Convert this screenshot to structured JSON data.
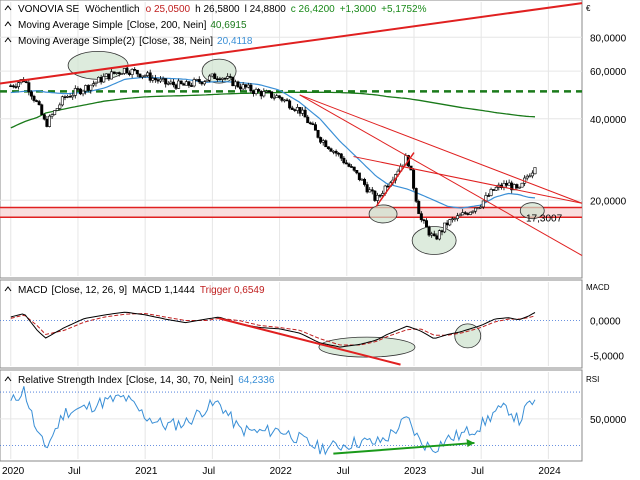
{
  "chart_data": [
    {
      "type": "candlestick",
      "title": "VONOVIA SE",
      "interval": "Wöchentlich",
      "quote": {
        "open": "o 25,0500",
        "high": "h 26,5800",
        "low": "l 24,8800",
        "close": "c 26,4200",
        "change": "+1,3000",
        "change_pct": "+5,1752%"
      },
      "currency": "€",
      "indicators": [
        {
          "name": "Moving Average Simple",
          "params": "[Close, 200, Nein]",
          "value": "40,6915",
          "color": "#1a7a1a"
        },
        {
          "name": "Moving Average Simple(2)",
          "params": "[Close, 38, Nein]",
          "value": "20,4118",
          "color": "#3a8fd6"
        }
      ],
      "price_ticks": [
        "80,0000",
        "60,0000",
        "40,0000",
        "20,0000"
      ],
      "price_tick_values": [
        80,
        60,
        40,
        20
      ],
      "scale": "log",
      "ylim": [
        10.5,
        108
      ],
      "level_label": "17,3007",
      "level_value": 17.3007,
      "support_band": [
        17.3,
        18.8
      ],
      "dashed_level": 50.5,
      "series_keypoints": {
        "dates": [
          2020.0,
          2020.1,
          2020.2,
          2020.26,
          2020.4,
          2020.55,
          2020.7,
          2020.85,
          2021.0,
          2021.15,
          2021.3,
          2021.45,
          2021.55,
          2021.7,
          2021.85,
          2022.0,
          2022.15,
          2022.3,
          2022.45,
          2022.6,
          2022.72,
          2022.8,
          2022.95,
          2023.05,
          2023.15,
          2023.25,
          2023.35,
          2023.5,
          2023.6,
          2023.7,
          2023.78,
          2023.85,
          2023.9
        ],
        "close": [
          53,
          56,
          45,
          38,
          48,
          52,
          57,
          61,
          58,
          54,
          53,
          56,
          58,
          53,
          50,
          48,
          43,
          34,
          29,
          24,
          20,
          23,
          29,
          17,
          14.3,
          16.5,
          17.5,
          19.5,
          22,
          23,
          21.5,
          25,
          26.42
        ],
        "ma200": [
          37,
          39,
          40.5,
          42,
          43.5,
          45,
          46.5,
          47.5,
          48.2,
          48.5,
          48.7,
          49.0,
          49.3,
          49.6,
          49.8,
          50.0,
          50.1,
          50.1,
          50.0,
          49.6,
          49.0,
          48.3,
          47.5,
          46.7,
          45.8,
          44.9,
          44.0,
          43.0,
          42.2,
          41.6,
          41.1,
          40.8,
          40.6915
        ],
        "ma38": [
          50,
          50.5,
          50.8,
          50.2,
          49.5,
          50,
          52,
          56,
          57,
          56.5,
          56,
          54.5,
          55,
          54.5,
          53.5,
          51,
          46,
          40,
          33,
          28,
          24.5,
          23,
          22,
          21,
          20,
          19,
          18.7,
          19.2,
          20.5,
          21.2,
          21,
          20.5,
          20.4118
        ]
      }
    },
    {
      "type": "line",
      "title": "MACD",
      "params": "[Close, 12, 26, 9]",
      "value_label": "MACD 1,1444",
      "trigger_label": "Trigger 0,6549",
      "ticks": [
        "0,0000",
        "-5,0000"
      ],
      "tick_values": [
        0,
        -5
      ],
      "ylim": [
        -6.5,
        5.5
      ],
      "zero_line": 0,
      "macd": [
        0.5,
        1.0,
        -1.5,
        -2.5,
        -1.0,
        0.3,
        0.8,
        1.2,
        0.8,
        0.2,
        -0.3,
        0.2,
        0.5,
        -0.5,
        -1.0,
        -1.2,
        -1.8,
        -3.2,
        -3.8,
        -3.4,
        -2.8,
        -2.0,
        -0.8,
        -1.5,
        -2.6,
        -2.0,
        -1.6,
        -0.7,
        0.2,
        0.4,
        0.1,
        0.6,
        1.1444
      ],
      "trigger": [
        0.3,
        0.8,
        -0.8,
        -2.0,
        -1.4,
        -0.2,
        0.5,
        0.9,
        1.0,
        0.5,
        0.0,
        0.0,
        0.3,
        0.0,
        -0.7,
        -1.0,
        -1.4,
        -2.6,
        -3.5,
        -3.5,
        -3.0,
        -2.3,
        -1.3,
        -1.2,
        -2.1,
        -2.1,
        -1.8,
        -1.0,
        -0.2,
        0.2,
        0.2,
        0.4,
        0.6549
      ]
    },
    {
      "type": "line",
      "title": "Relative Strength Index",
      "params": "[Close, 14, 30, 70, Nein]",
      "value_label": "64,2336",
      "axis_label": "RSI",
      "ticks": [
        "50,0000"
      ],
      "tick_values": [
        50
      ],
      "ylim": [
        20,
        85
      ],
      "bands": [
        70,
        30
      ],
      "rsi": [
        62,
        72,
        38,
        28,
        55,
        58,
        63,
        66,
        52,
        45,
        47,
        58,
        62,
        42,
        40,
        42,
        35,
        28,
        30,
        33,
        32,
        36,
        50,
        32,
        28,
        35,
        38,
        45,
        55,
        58,
        48,
        60,
        64.2336
      ]
    }
  ],
  "x_ticks": [
    "2020",
    "Jul",
    "2021",
    "Jul",
    "2022",
    "Jul",
    "2023",
    "Jul",
    "2024"
  ],
  "x_tick_values": [
    2020.0,
    2020.5,
    2021.0,
    2021.5,
    2022.0,
    2022.5,
    2023.0,
    2023.5,
    2024.0
  ],
  "xlim": [
    1999.9,
    2024.25
  ],
  "panel_labels": {
    "price_currency": "€",
    "macd_axis": "MACD",
    "rsi_axis": "RSI"
  },
  "colors": {
    "candle_up": "#ffffff",
    "candle_down": "#000000",
    "trend": "#e02020",
    "ma200": "#1a7a1a",
    "ma38": "#3a8fd6",
    "macd": "#000000",
    "trigger": "#c02020",
    "rsi": "#3a8fd6",
    "dotted": "#3a6fd6",
    "ellipse": "#cfe3cf",
    "arrow_green": "#1a9a1a"
  }
}
